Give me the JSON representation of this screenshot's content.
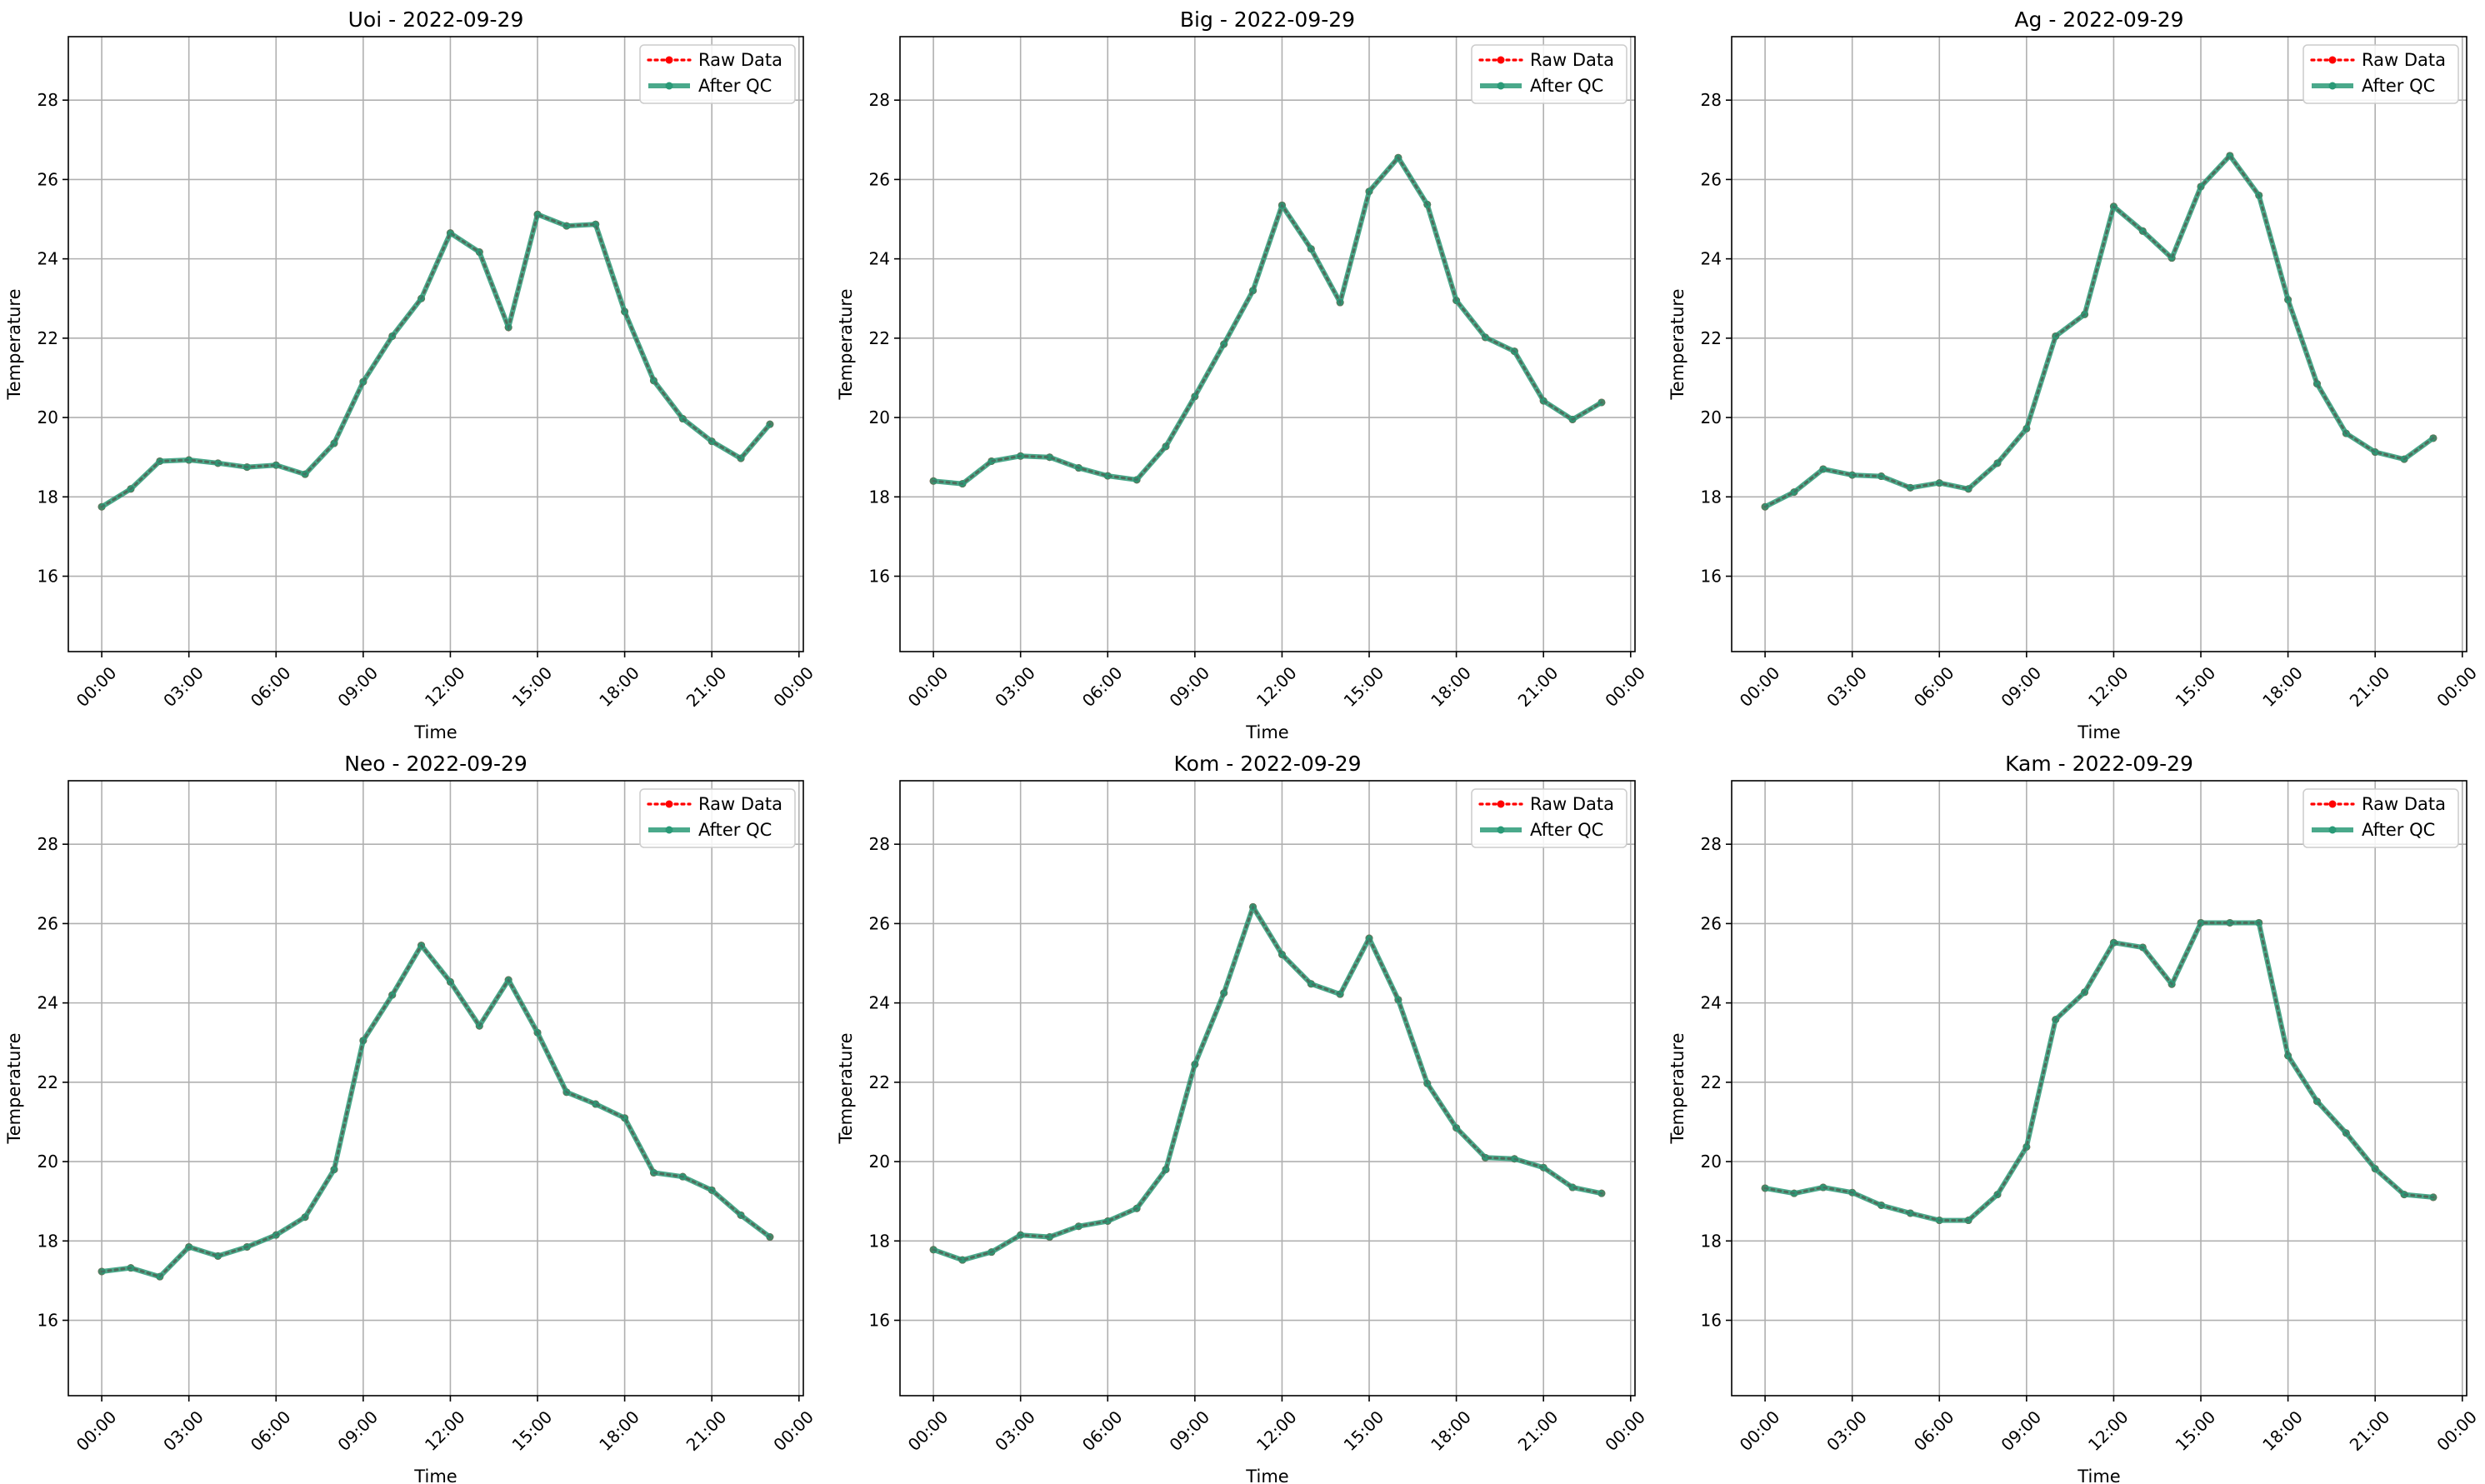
{
  "chart_data": [
    {
      "type": "line",
      "title": "Uoi - 2022-09-29",
      "xlabel": "Time",
      "ylabel": "Temperature",
      "x_tick_labels": [
        "00:00",
        "03:00",
        "06:00",
        "09:00",
        "12:00",
        "15:00",
        "18:00",
        "21:00",
        "00:00"
      ],
      "y_ticks": [
        16,
        18,
        20,
        22,
        24,
        26,
        28
      ],
      "xlim_hours": [
        -1.15,
        24.15
      ],
      "ylim": [
        14.1,
        29.6
      ],
      "grid": true,
      "legend_position": "top-right",
      "x_hours": [
        0,
        1,
        2,
        3,
        4,
        5,
        6,
        7,
        8,
        9,
        10,
        11,
        12,
        13,
        14,
        15,
        16,
        17,
        18,
        19,
        20,
        21,
        22,
        23
      ],
      "series": [
        {
          "name": "Raw Data",
          "color": "#ff0000",
          "style": "dotted",
          "values": [
            17.75,
            18.2,
            18.9,
            18.93,
            18.85,
            18.75,
            18.8,
            18.57,
            19.35,
            20.9,
            22.05,
            23.0,
            24.65,
            24.17,
            22.27,
            25.12,
            24.83,
            24.87,
            22.67,
            20.93,
            19.97,
            19.4,
            18.97,
            19.83
          ]
        },
        {
          "name": "After QC",
          "color": "#2a9a77",
          "style": "solid",
          "values": [
            17.75,
            18.2,
            18.9,
            18.93,
            18.85,
            18.75,
            18.8,
            18.57,
            19.35,
            20.9,
            22.05,
            23.0,
            24.65,
            24.17,
            22.27,
            25.12,
            24.83,
            24.87,
            22.67,
            20.93,
            19.97,
            19.4,
            18.97,
            19.83
          ]
        }
      ]
    },
    {
      "type": "line",
      "title": "Big - 2022-09-29",
      "xlabel": "Time",
      "ylabel": "Temperature",
      "x_tick_labels": [
        "00:00",
        "03:00",
        "06:00",
        "09:00",
        "12:00",
        "15:00",
        "18:00",
        "21:00",
        "00:00"
      ],
      "y_ticks": [
        16,
        18,
        20,
        22,
        24,
        26,
        28
      ],
      "xlim_hours": [
        -1.15,
        24.15
      ],
      "ylim": [
        14.1,
        29.6
      ],
      "grid": true,
      "legend_position": "top-right",
      "x_hours": [
        0,
        1,
        2,
        3,
        4,
        5,
        6,
        7,
        8,
        9,
        10,
        11,
        12,
        13,
        14,
        15,
        16,
        17,
        18,
        19,
        20,
        21,
        22,
        23
      ],
      "series": [
        {
          "name": "Raw Data",
          "color": "#ff0000",
          "style": "dotted",
          "values": [
            18.4,
            18.33,
            18.9,
            19.03,
            19.0,
            18.73,
            18.53,
            18.43,
            19.27,
            20.53,
            21.85,
            23.2,
            25.35,
            24.25,
            22.9,
            25.7,
            26.55,
            25.37,
            22.95,
            22.02,
            21.67,
            20.42,
            19.95,
            20.38
          ]
        },
        {
          "name": "After QC",
          "color": "#2a9a77",
          "style": "solid",
          "values": [
            18.4,
            18.33,
            18.9,
            19.03,
            19.0,
            18.73,
            18.53,
            18.43,
            19.27,
            20.53,
            21.85,
            23.2,
            25.35,
            24.25,
            22.9,
            25.7,
            26.55,
            25.37,
            22.95,
            22.02,
            21.67,
            20.42,
            19.95,
            20.38
          ]
        }
      ]
    },
    {
      "type": "line",
      "title": "Ag - 2022-09-29",
      "xlabel": "Time",
      "ylabel": "Temperature",
      "x_tick_labels": [
        "00:00",
        "03:00",
        "06:00",
        "09:00",
        "12:00",
        "15:00",
        "18:00",
        "21:00",
        "00:00"
      ],
      "y_ticks": [
        16,
        18,
        20,
        22,
        24,
        26,
        28
      ],
      "xlim_hours": [
        -1.15,
        24.15
      ],
      "ylim": [
        14.1,
        29.6
      ],
      "grid": true,
      "legend_position": "top-right",
      "x_hours": [
        0,
        1,
        2,
        3,
        4,
        5,
        6,
        7,
        8,
        9,
        10,
        11,
        12,
        13,
        14,
        15,
        16,
        17,
        18,
        19,
        20,
        21,
        22,
        23
      ],
      "series": [
        {
          "name": "Raw Data",
          "color": "#ff0000",
          "style": "dotted",
          "values": [
            17.75,
            18.12,
            18.7,
            18.55,
            18.52,
            18.23,
            18.35,
            18.2,
            18.85,
            19.72,
            22.05,
            22.6,
            25.32,
            24.7,
            24.02,
            25.82,
            26.6,
            25.6,
            22.97,
            20.85,
            19.6,
            19.13,
            18.95,
            19.48
          ]
        },
        {
          "name": "After QC",
          "color": "#2a9a77",
          "style": "solid",
          "values": [
            17.75,
            18.12,
            18.7,
            18.55,
            18.52,
            18.23,
            18.35,
            18.2,
            18.85,
            19.72,
            22.05,
            22.6,
            25.32,
            24.7,
            24.02,
            25.82,
            26.6,
            25.6,
            22.97,
            20.85,
            19.6,
            19.13,
            18.95,
            19.48
          ]
        }
      ]
    },
    {
      "type": "line",
      "title": "Neo - 2022-09-29",
      "xlabel": "Time",
      "ylabel": "Temperature",
      "x_tick_labels": [
        "00:00",
        "03:00",
        "06:00",
        "09:00",
        "12:00",
        "15:00",
        "18:00",
        "21:00",
        "00:00"
      ],
      "y_ticks": [
        16,
        18,
        20,
        22,
        24,
        26,
        28
      ],
      "xlim_hours": [
        -1.15,
        24.15
      ],
      "ylim": [
        14.1,
        29.6
      ],
      "grid": true,
      "legend_position": "top-right",
      "x_hours": [
        0,
        1,
        2,
        3,
        4,
        5,
        6,
        7,
        8,
        9,
        10,
        11,
        12,
        13,
        14,
        15,
        16,
        17,
        18,
        19,
        20,
        21,
        22,
        23
      ],
      "series": [
        {
          "name": "Raw Data",
          "color": "#ff0000",
          "style": "dotted",
          "values": [
            17.23,
            17.32,
            17.1,
            17.85,
            17.62,
            17.85,
            18.15,
            18.6,
            19.8,
            23.05,
            24.2,
            25.45,
            24.53,
            23.42,
            24.58,
            23.25,
            21.75,
            21.45,
            21.1,
            19.72,
            19.62,
            19.28,
            18.65,
            18.1
          ]
        },
        {
          "name": "After QC",
          "color": "#2a9a77",
          "style": "solid",
          "values": [
            17.23,
            17.32,
            17.1,
            17.85,
            17.62,
            17.85,
            18.15,
            18.6,
            19.8,
            23.05,
            24.2,
            25.45,
            24.53,
            23.42,
            24.58,
            23.25,
            21.75,
            21.45,
            21.1,
            19.72,
            19.62,
            19.28,
            18.65,
            18.1
          ]
        }
      ]
    },
    {
      "type": "line",
      "title": "Kom - 2022-09-29",
      "xlabel": "Time",
      "ylabel": "Temperature",
      "x_tick_labels": [
        "00:00",
        "03:00",
        "06:00",
        "09:00",
        "12:00",
        "15:00",
        "18:00",
        "21:00",
        "00:00"
      ],
      "y_ticks": [
        16,
        18,
        20,
        22,
        24,
        26,
        28
      ],
      "xlim_hours": [
        -1.15,
        24.15
      ],
      "ylim": [
        14.1,
        29.6
      ],
      "grid": true,
      "legend_position": "top-right",
      "x_hours": [
        0,
        1,
        2,
        3,
        4,
        5,
        6,
        7,
        8,
        9,
        10,
        11,
        12,
        13,
        14,
        15,
        16,
        17,
        18,
        19,
        20,
        21,
        22,
        23
      ],
      "series": [
        {
          "name": "Raw Data",
          "color": "#ff0000",
          "style": "dotted",
          "values": [
            17.78,
            17.52,
            17.72,
            18.15,
            18.1,
            18.37,
            18.5,
            18.82,
            19.8,
            22.45,
            24.25,
            26.42,
            25.22,
            24.48,
            24.22,
            25.63,
            24.08,
            21.97,
            20.85,
            20.1,
            20.07,
            19.85,
            19.35,
            19.2
          ]
        },
        {
          "name": "After QC",
          "color": "#2a9a77",
          "style": "solid",
          "values": [
            17.78,
            17.52,
            17.72,
            18.15,
            18.1,
            18.37,
            18.5,
            18.82,
            19.8,
            22.45,
            24.25,
            26.42,
            25.22,
            24.48,
            24.22,
            25.63,
            24.08,
            21.97,
            20.85,
            20.1,
            20.07,
            19.85,
            19.35,
            19.2
          ]
        }
      ]
    },
    {
      "type": "line",
      "title": "Kam - 2022-09-29",
      "xlabel": "Time",
      "ylabel": "Temperature",
      "x_tick_labels": [
        "00:00",
        "03:00",
        "06:00",
        "09:00",
        "12:00",
        "15:00",
        "18:00",
        "21:00",
        "00:00"
      ],
      "y_ticks": [
        16,
        18,
        20,
        22,
        24,
        26,
        28
      ],
      "xlim_hours": [
        -1.15,
        24.15
      ],
      "ylim": [
        14.1,
        29.6
      ],
      "grid": true,
      "legend_position": "top-right",
      "x_hours": [
        0,
        1,
        2,
        3,
        4,
        5,
        6,
        7,
        8,
        9,
        10,
        11,
        12,
        13,
        14,
        15,
        16,
        17,
        18,
        19,
        20,
        21,
        22,
        23
      ],
      "series": [
        {
          "name": "Raw Data",
          "color": "#ff0000",
          "style": "dotted",
          "values": [
            19.33,
            19.2,
            19.35,
            19.22,
            18.9,
            18.7,
            18.52,
            18.52,
            19.17,
            20.37,
            23.58,
            24.27,
            25.52,
            25.4,
            24.47,
            26.02,
            26.02,
            26.02,
            22.67,
            21.52,
            20.72,
            19.82,
            19.17,
            19.1
          ]
        },
        {
          "name": "After QC",
          "color": "#2a9a77",
          "style": "solid",
          "values": [
            19.33,
            19.2,
            19.35,
            19.22,
            18.9,
            18.7,
            18.52,
            18.52,
            19.17,
            20.37,
            23.58,
            24.27,
            25.52,
            25.4,
            24.47,
            26.02,
            26.02,
            26.02,
            22.67,
            21.52,
            20.72,
            19.82,
            19.17,
            19.1
          ]
        }
      ]
    }
  ]
}
